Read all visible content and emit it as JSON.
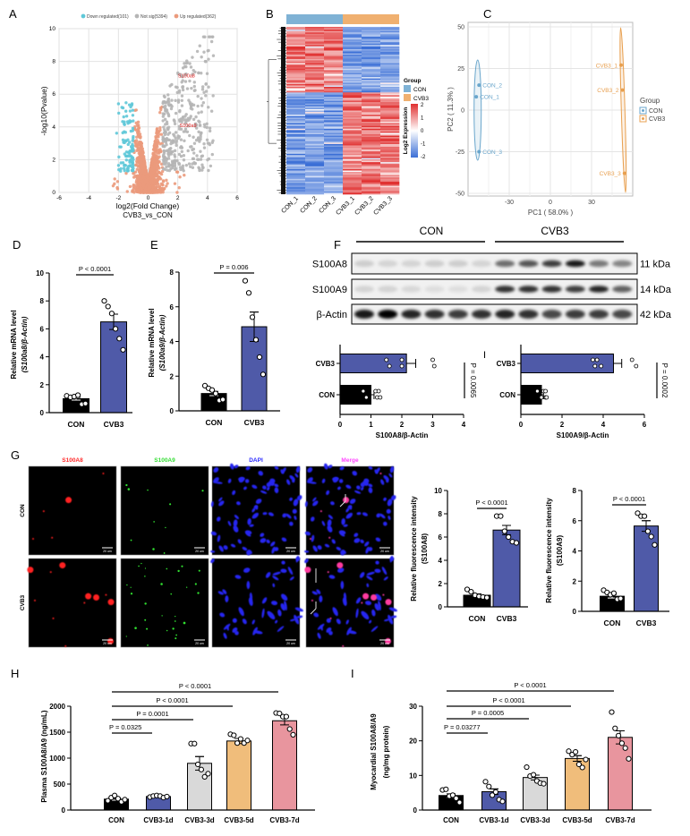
{
  "figure": {
    "panel_labels": [
      "A",
      "B",
      "C",
      "D",
      "E",
      "F",
      "G",
      "H",
      "I"
    ],
    "stray_label": "I"
  },
  "chart_data": [
    {
      "id": "A",
      "type": "scatter",
      "legend": [
        {
          "label": "Down regulated(101)",
          "color": "#5ec8d8"
        },
        {
          "label": "Not sig(5394)",
          "color": "#b5b5b5"
        },
        {
          "label": "Up regulated(362)",
          "color": "#eb9a7c"
        }
      ],
      "counts": {
        "down": 101,
        "not_sig": 5394,
        "up": 362
      },
      "xlabel": "log2(Fold Change)",
      "subtitle": "CVB3_vs_CON",
      "ylabel": "-log10(Pvalue)",
      "xlim": [
        -6,
        6
      ],
      "ylim": [
        0,
        10
      ],
      "xticks": [
        "-6",
        "-4",
        "-2",
        "0",
        "2",
        "4",
        "6"
      ],
      "yticks": [
        "0",
        "2",
        "4",
        "6",
        "8",
        "10"
      ],
      "grid": true,
      "annotations": [
        {
          "label": "S100a8",
          "x": 3.4,
          "y": 7.3
        },
        {
          "label": "S100a9",
          "x": 3.5,
          "y": 4.1
        }
      ],
      "annotation_color": "#e02020"
    },
    {
      "id": "B",
      "type": "heatmap",
      "columns": [
        "CON_1",
        "CON_2",
        "CON_3",
        "CVB3_1",
        "CVB3_2",
        "CVB3_3"
      ],
      "legend_title": "Group",
      "groups": [
        {
          "name": "CON",
          "color": "#7fb2d5"
        },
        {
          "name": "CVB3",
          "color": "#f0b070"
        }
      ],
      "colorbar_label": "Log2 Expression",
      "colorbar_ticks": [
        "2",
        "1",
        "0",
        "-1",
        "-2"
      ],
      "range": [
        -2,
        2
      ],
      "colors": {
        "low": "#3b6fd6",
        "mid": "#ffffff",
        "high": "#e03030"
      }
    },
    {
      "id": "C",
      "type": "scatter",
      "xlabel": "PC1 ( 58.0% )",
      "ylabel": "PC2 ( 11.3% )",
      "xlim": [
        -60,
        60
      ],
      "ylim": [
        -53,
        53
      ],
      "xticks": [
        "-30",
        "0",
        "30"
      ],
      "yticks": [
        "50",
        "25",
        "0",
        "-25",
        "-50"
      ],
      "grid": true,
      "legend_title": "Group",
      "legend_position": "right",
      "series": [
        {
          "name": "CON",
          "color": "#6aa6cc",
          "points": [
            {
              "label": "CON_1",
              "x": -54,
              "y": 8
            },
            {
              "label": "CON_2",
              "x": -52,
              "y": 15
            },
            {
              "label": "CON_3",
              "x": -52,
              "y": -25
            }
          ]
        },
        {
          "name": "CVB3",
          "color": "#e8a050",
          "points": [
            {
              "label": "CVB3_1",
              "x": 51.5,
              "y": 27
            },
            {
              "label": "CVB3_2",
              "x": 52.5,
              "y": 12
            },
            {
              "label": "CVB3_3",
              "x": 54,
              "y": -38
            }
          ]
        }
      ]
    },
    {
      "id": "D",
      "type": "bar",
      "ylabel": [
        "Relative mRNA level",
        "(S100a8/β-Actin)"
      ],
      "categories": [
        "CON",
        "CVB3"
      ],
      "values": [
        1.0,
        6.5
      ],
      "sem": [
        0.1,
        0.55
      ],
      "points": [
        [
          1.2,
          1.1,
          1.15,
          1.25,
          0.6,
          0.65
        ],
        [
          8.0,
          7.6,
          7.1,
          6.0,
          5.3,
          4.5
        ]
      ],
      "colors": [
        "#000000",
        "#4f5aa8"
      ],
      "ylim": [
        0,
        10
      ],
      "yticks": [
        "0",
        "2",
        "4",
        "6",
        "8",
        "10"
      ],
      "comparisons": [
        {
          "from": 0,
          "to": 1,
          "label": "P < 0.0001"
        }
      ]
    },
    {
      "id": "E",
      "type": "bar",
      "ylabel": [
        "Relative mRNA level",
        "(S100a9/β-Actin)"
      ],
      "categories": [
        "CON",
        "CVB3"
      ],
      "values": [
        1.0,
        4.85
      ],
      "sem": [
        0.12,
        0.85
      ],
      "points": [
        [
          1.45,
          1.3,
          1.2,
          1.0,
          0.6,
          0.65
        ],
        [
          7.5,
          6.8,
          5.4,
          4.1,
          3.1,
          2.1
        ]
      ],
      "colors": [
        "#000000",
        "#4f5aa8"
      ],
      "ylim": [
        0,
        8
      ],
      "yticks": [
        "0",
        "2",
        "4",
        "6",
        "8"
      ],
      "comparisons": [
        {
          "from": 0,
          "to": 1,
          "label": "P = 0.006"
        }
      ]
    },
    {
      "id": "F-left",
      "type": "bar",
      "orientation": "horizontal",
      "xlabel": "S100A8/β-Actin",
      "categories": [
        "CON",
        "CVB3"
      ],
      "values": [
        1.0,
        2.15
      ],
      "sem": [
        0.1,
        0.3
      ],
      "points": [
        [
          0.75,
          0.85,
          1.15,
          1.2,
          1.25,
          1.3
        ],
        [
          1.5,
          1.6,
          2.0,
          2.0,
          3.0,
          3.05
        ]
      ],
      "colors": [
        "#000000",
        "#4f5aa8"
      ],
      "xlim": [
        0,
        4
      ],
      "xticks": [
        "0",
        "1",
        "2",
        "3",
        "4"
      ],
      "comparisons": [
        {
          "from": 0,
          "to": 1,
          "label": "P = 0.0065"
        }
      ]
    },
    {
      "id": "F-right",
      "type": "bar",
      "orientation": "horizontal",
      "xlabel": "S100A9/β-Actin",
      "categories": [
        "CON",
        "CVB3"
      ],
      "values": [
        1.0,
        4.5
      ],
      "sem": [
        0.1,
        0.4
      ],
      "points": [
        [
          0.8,
          1.0,
          1.1,
          1.2,
          1.2,
          1.25
        ],
        [
          3.5,
          3.6,
          3.7,
          3.9,
          5.4,
          5.6
        ]
      ],
      "colors": [
        "#000000",
        "#4f5aa8"
      ],
      "xlim": [
        0,
        6
      ],
      "xticks": [
        "0",
        "2",
        "4",
        "6"
      ],
      "comparisons": [
        {
          "from": 0,
          "to": 1,
          "label": "P = 0.0002"
        }
      ]
    },
    {
      "id": "G-left",
      "type": "bar",
      "ylabel": [
        "Relative fluorescence intensity",
        "(S100A8)"
      ],
      "categories": [
        "CON",
        "CVB3"
      ],
      "values": [
        1.0,
        6.6
      ],
      "sem": [
        0.12,
        0.4
      ],
      "points": [
        [
          1.5,
          1.3,
          1.0,
          0.9,
          0.85,
          0.8
        ],
        [
          7.8,
          7.8,
          6.5,
          6.0,
          5.6,
          5.5
        ]
      ],
      "colors": [
        "#000000",
        "#4f5aa8"
      ],
      "ylim": [
        0,
        10
      ],
      "yticks": [
        "0",
        "2",
        "4",
        "6",
        "8",
        "10"
      ],
      "comparisons": [
        {
          "from": 0,
          "to": 1,
          "label": "P < 0.0001"
        }
      ]
    },
    {
      "id": "G-right",
      "type": "bar",
      "ylabel": [
        "Relative fluorescence intensity",
        "(S100A9)"
      ],
      "categories": [
        "CON",
        "CVB3"
      ],
      "values": [
        1.0,
        5.65
      ],
      "sem": [
        0.12,
        0.35
      ],
      "points": [
        [
          1.4,
          1.25,
          1.1,
          1.2,
          0.8,
          0.85
        ],
        [
          6.5,
          6.3,
          6.3,
          5.3,
          4.95,
          4.4
        ]
      ],
      "colors": [
        "#000000",
        "#4f5aa8"
      ],
      "ylim": [
        0,
        8
      ],
      "yticks": [
        "0",
        "2",
        "4",
        "6",
        "8"
      ],
      "comparisons": [
        {
          "from": 0,
          "to": 1,
          "label": "P < 0.0001"
        }
      ]
    },
    {
      "id": "H",
      "type": "bar",
      "ylabel": [
        "Plasma S100A8/A9 (ng/mL)"
      ],
      "categories": [
        "CON",
        "CVB3-1d",
        "CVB3-3d",
        "CVB3-5d",
        "CVB3-7d"
      ],
      "values": [
        210,
        260,
        900,
        1330,
        1720
      ],
      "sem": [
        20,
        10,
        130,
        50,
        80
      ],
      "points": [
        [
          180,
          240,
          280,
          220,
          160,
          200
        ],
        [
          250,
          270,
          280,
          270,
          240,
          260
        ],
        [
          1280,
          1280,
          880,
          780,
          640,
          700
        ],
        [
          1460,
          1440,
          1290,
          1370,
          1290,
          1340
        ],
        [
          1870,
          1860,
          1800,
          1800,
          1560,
          1450
        ]
      ],
      "colors": [
        "#000000",
        "#4f5aa8",
        "#d9d9d9",
        "#f0bd7b",
        "#e8959e"
      ],
      "ylim": [
        0,
        2000
      ],
      "yticks": [
        "0",
        "500",
        "1000",
        "1500",
        "2000"
      ],
      "comparisons": [
        {
          "from": 0,
          "to": 1,
          "label": "P = 0.0325"
        },
        {
          "from": 0,
          "to": 2,
          "label": "P = 0.0001"
        },
        {
          "from": 0,
          "to": 3,
          "label": "P < 0.0001"
        },
        {
          "from": 0,
          "to": 4,
          "label": "P < 0.0001"
        }
      ]
    },
    {
      "id": "I",
      "type": "bar",
      "ylabel": [
        "Myocardial S100A8/A9",
        "(ng/mg protein)"
      ],
      "categories": [
        "CON",
        "CVB3-1d",
        "CVB3-3d",
        "CVB3-5d",
        "CVB3-7d"
      ],
      "values": [
        4.2,
        5.3,
        9.4,
        14.9,
        21.0
      ],
      "sem": [
        0.5,
        0.8,
        0.7,
        0.8,
        1.9
      ],
      "points": [
        [
          5.8,
          6.0,
          4.0,
          4.3,
          3.4,
          2.2
        ],
        [
          8.2,
          6.8,
          4.3,
          5.2,
          3.0,
          2.5
        ],
        [
          12.4,
          9.8,
          10.2,
          8.4,
          7.8,
          7.6
        ],
        [
          17.0,
          16.0,
          16.8,
          13.2,
          12.3,
          14.6
        ],
        [
          28.3,
          23.6,
          21.5,
          19.3,
          17.9,
          14.8
        ]
      ],
      "colors": [
        "#000000",
        "#4f5aa8",
        "#d9d9d9",
        "#f0bd7b",
        "#e8959e"
      ],
      "ylim": [
        0,
        30
      ],
      "yticks": [
        "0",
        "10",
        "20",
        "30"
      ],
      "comparisons": [
        {
          "from": 0,
          "to": 1,
          "label": "P = 0.03277"
        },
        {
          "from": 0,
          "to": 2,
          "label": "P = 0.0005"
        },
        {
          "from": 0,
          "to": 3,
          "label": "P < 0.0001"
        },
        {
          "from": 0,
          "to": 4,
          "label": "P < 0.0001"
        }
      ]
    }
  ],
  "western_blot": {
    "groups": [
      "CON",
      "CVB3"
    ],
    "rows": [
      {
        "label": "S100A8",
        "size": "11 kDa",
        "intensity": [
          0.15,
          0.12,
          0.12,
          0.15,
          0.15,
          0.12,
          0.55,
          0.65,
          0.75,
          0.9,
          0.5,
          0.45
        ]
      },
      {
        "label": "S100A9",
        "size": "14 kDa",
        "intensity": [
          0.12,
          0.12,
          0.1,
          0.08,
          0.08,
          0.12,
          0.8,
          0.8,
          0.8,
          0.75,
          0.85,
          0.6
        ]
      },
      {
        "label": "β-Actin",
        "size": "42 kDa",
        "intensity": [
          0.9,
          1.0,
          0.85,
          0.8,
          0.75,
          0.8,
          0.85,
          0.8,
          0.7,
          0.75,
          0.75,
          0.7
        ]
      }
    ]
  },
  "immunofluorescence": {
    "channels": [
      {
        "label": "S100A8",
        "color": "#ff2a2a"
      },
      {
        "label": "S100A9",
        "color": "#33dd33"
      },
      {
        "label": "DAPI",
        "color": "#2a2aff"
      },
      {
        "label": "Merge",
        "color": "#ff44ff"
      }
    ],
    "rows": [
      "CON",
      "CVB3"
    ],
    "scale_bar": "20 um"
  }
}
